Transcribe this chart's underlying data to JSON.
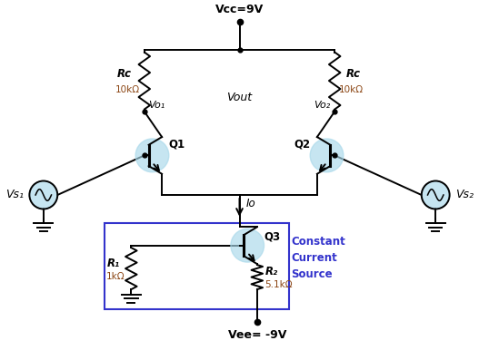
{
  "background_color": "#ffffff",
  "vcc_label": "Vcc=9V",
  "vee_label": "Vee= -9V",
  "rc1_label": "Rc",
  "rc1_value": "10kΩ",
  "rc2_label": "Rc",
  "rc2_value": "10kΩ",
  "q1_label": "Q1",
  "q2_label": "Q2",
  "q3_label": "Q3",
  "vo1_label": "Vo₁",
  "vo2_label": "Vo₂",
  "vout_label": "Vout",
  "io_label": "Io",
  "vs1_label": "Vs₁",
  "vs2_label": "Vs₂",
  "r1_label": "R₁",
  "r1_value": "1kΩ",
  "r2_label": "R₂",
  "r2_value": "5.1kΩ",
  "const_label": "Constant\nCurrent\nSource",
  "tc_color": "#a8d8ea",
  "tc_alpha": 0.65,
  "wire_color": "#000000",
  "text_color": "#000000",
  "val_color": "#8B4513",
  "box_color": "#3333cc",
  "const_color": "#3333cc",
  "figsize": [
    5.27,
    3.97
  ],
  "dpi": 100
}
